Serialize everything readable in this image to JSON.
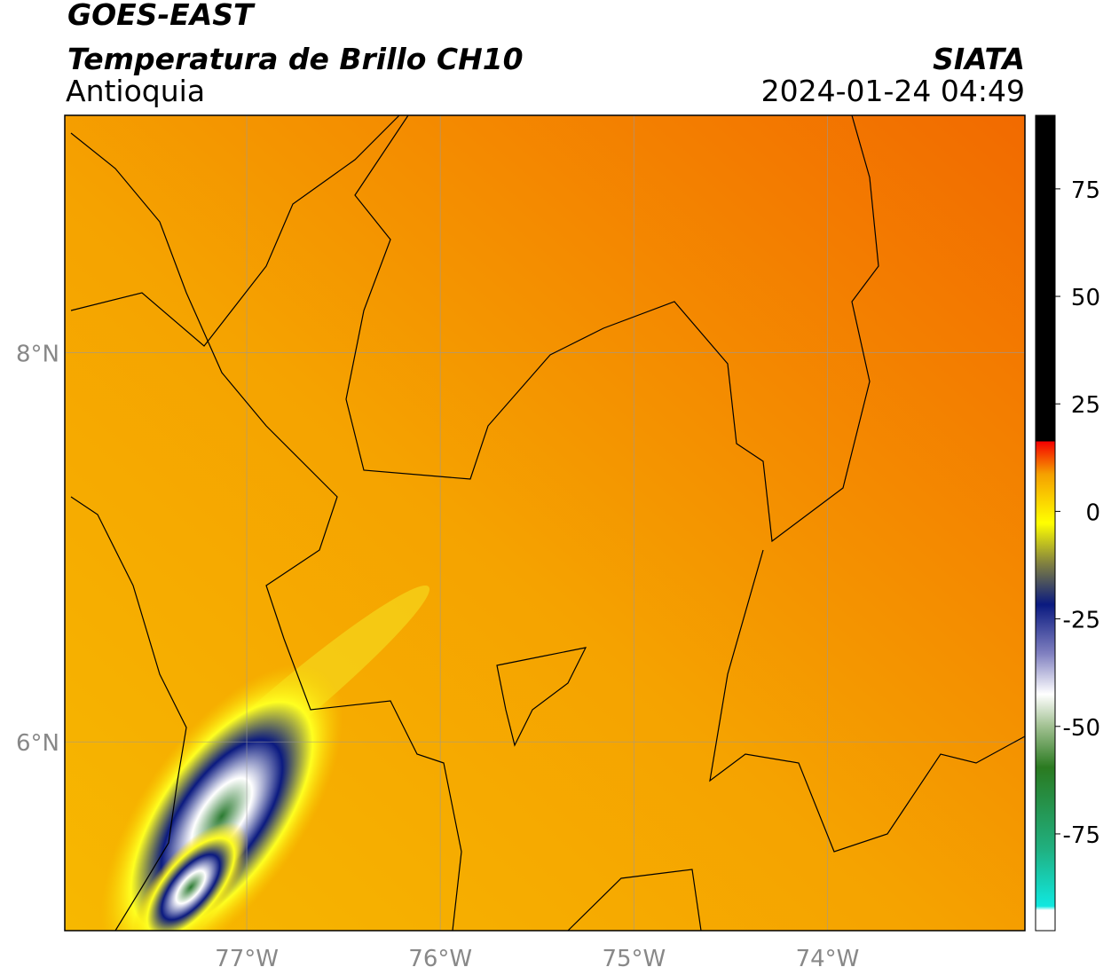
{
  "header": {
    "title": "GOES-EAST",
    "subtitle": "Temperatura de Brillo CH10",
    "region": "Antioquia",
    "source": "SIATA",
    "timestamp": "2024-01-24 04:49"
  },
  "map": {
    "lonlim": [
      -77.94,
      -72.98
    ],
    "latlim": [
      5.03,
      9.22
    ],
    "lon_ticks": [
      {
        "value": -77,
        "label": "77°W"
      },
      {
        "value": -76,
        "label": "76°W"
      },
      {
        "value": -75,
        "label": "75°W"
      },
      {
        "value": -74,
        "label": "74°W"
      }
    ],
    "lat_ticks": [
      {
        "value": 8,
        "label": "8°N"
      },
      {
        "value": 6,
        "label": "6°N"
      }
    ]
  },
  "colorbar": {
    "lim": [
      -97.5,
      92.1
    ],
    "ticks": [
      75,
      50,
      25,
      0,
      -25,
      -50,
      -75
    ]
  }
}
